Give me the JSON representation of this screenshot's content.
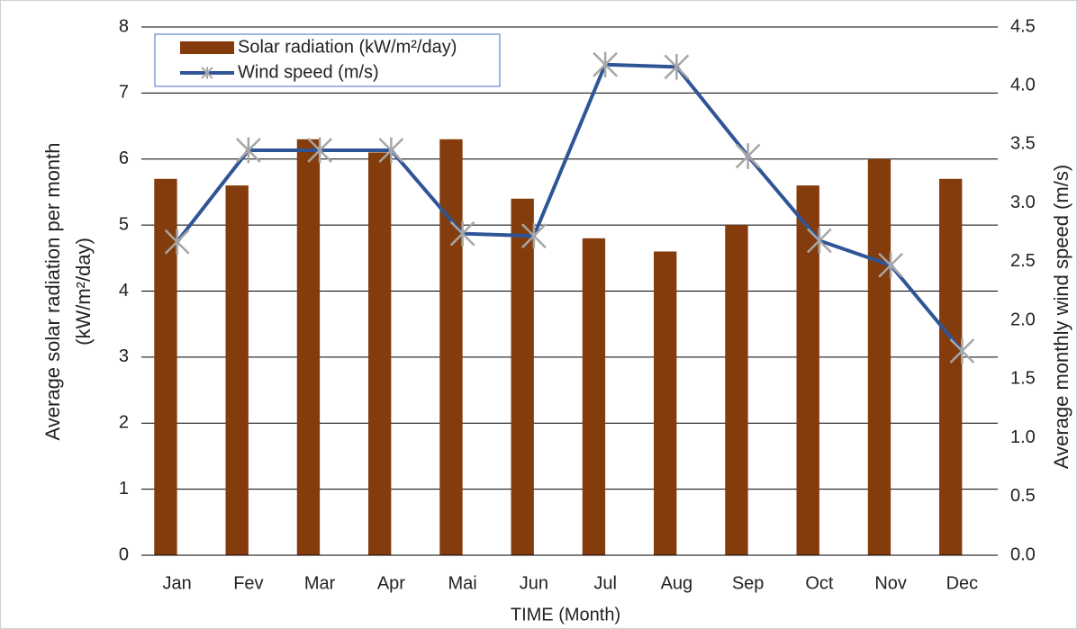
{
  "chart_data": {
    "type": "bar_line",
    "categories": [
      "Jan",
      "Fev",
      "Mar",
      "Apr",
      "Mai",
      "Jun",
      "Jul",
      "Aug",
      "Sep",
      "Oct",
      "Nov",
      "Dec"
    ],
    "series": [
      {
        "name": "Solar radiation (kW/m²/day)",
        "type": "bar",
        "color": "#843c0c",
        "values": [
          5.7,
          5.6,
          6.3,
          6.1,
          6.3,
          5.4,
          4.8,
          4.6,
          5.0,
          5.6,
          6.0,
          5.7
        ]
      },
      {
        "name": "Wind speed (m/s)",
        "type": "line",
        "axis": "y2",
        "color": "#2f5597",
        "marker_color": "#a6a6a6",
        "values": [
          2.67,
          3.45,
          3.45,
          3.45,
          2.74,
          2.72,
          4.18,
          4.16,
          3.4,
          2.68,
          2.47,
          1.74
        ]
      }
    ],
    "xlabel": "TIME  (Month)",
    "ylabel": [
      "Average solar radiation per month",
      "(kW/m²/day)"
    ],
    "y2label": "Average monthly  wind speed (m/s)",
    "ylim": [
      0,
      8
    ],
    "yticks": [
      0,
      1,
      2,
      3,
      4,
      5,
      6,
      7,
      8
    ],
    "y2lim": [
      0,
      4.5
    ],
    "y2ticks": [
      {
        "value": 0,
        "label": "0.0"
      },
      0.5,
      {
        "value": 1,
        "label": "1.0"
      },
      1.5,
      {
        "value": 2,
        "label": "2.0"
      },
      2.5,
      {
        "value": 3,
        "label": "3.0"
      },
      3.5,
      {
        "value": 4,
        "label": "4.0"
      },
      4.5
    ],
    "grid": true,
    "legend": "upper left"
  }
}
